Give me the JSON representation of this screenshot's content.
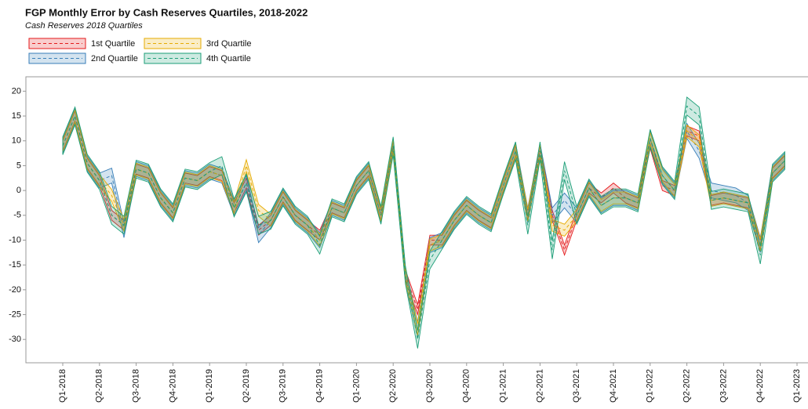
{
  "chart_data": {
    "type": "line",
    "title": "FGP Monthly Error by Cash Reserves Quartiles, 2018-2022",
    "subtitle": "Cash Reserves 2018 Quartiles",
    "categories": [
      "Q1-2018",
      null,
      null,
      "Q2-2018",
      null,
      null,
      "Q3-2018",
      null,
      null,
      "Q4-2018",
      null,
      null,
      "Q1-2019",
      null,
      null,
      "Q2-2019",
      null,
      null,
      "Q3-2019",
      null,
      null,
      "Q4-2019",
      null,
      null,
      "Q1-2020",
      null,
      null,
      "Q2-2020",
      null,
      null,
      "Q3-2020",
      null,
      null,
      "Q4-2020",
      null,
      null,
      "Q1-2021",
      null,
      null,
      "Q2-2021",
      null,
      null,
      "Q3-2021",
      null,
      null,
      "Q4-2021",
      null,
      null,
      "Q1-2022",
      null,
      null,
      "Q2-2022",
      null,
      null,
      "Q3-2022",
      null,
      null,
      "Q4-2022",
      null,
      null,
      "Q1-2023"
    ],
    "ylim": [
      -34.7,
      22.9
    ],
    "yticks": [
      -30,
      -25,
      -20,
      -15,
      -10,
      -5,
      0,
      5,
      10,
      15,
      20
    ],
    "series": [
      {
        "name": "1st Quartile",
        "color": "#e41a1c",
        "error": 1.0,
        "values": [
          9,
          15,
          5.5,
          2,
          -5,
          -7,
          4.3,
          3.5,
          -1.5,
          -4.5,
          2.5,
          2,
          3.8,
          3,
          -3.5,
          1.5,
          -8,
          -6,
          -1.3,
          -5,
          -7,
          -9,
          -3.5,
          -4.5,
          1,
          4,
          -5,
          9,
          -17,
          -24,
          -10,
          -10,
          -6,
          -3,
          -5,
          -6.5,
          1,
          8,
          -5,
          8,
          -5,
          -12,
          -5,
          0.5,
          -1.5,
          0.5,
          -1.5,
          -2.5,
          9.5,
          1,
          0,
          12,
          11,
          -2,
          -1.5,
          -2,
          -2.5,
          -11,
          3.5,
          6,
          null
        ]
      },
      {
        "name": "2nd Quartile",
        "color": "#377eb8",
        "error": 1.5,
        "values": [
          9,
          15,
          5.5,
          2,
          3,
          -8,
          4.3,
          3.5,
          -1.5,
          -4.5,
          2.5,
          2,
          3.8,
          3,
          -3.5,
          1.5,
          -9,
          -6,
          -1.3,
          -5,
          -7,
          -10,
          -3.5,
          -4.5,
          1,
          4,
          -5,
          9,
          -17,
          -28,
          -11,
          -10,
          -6,
          -3,
          -5,
          -6.5,
          1,
          8,
          -5,
          8,
          -5,
          -2,
          -5,
          0.5,
          -3,
          -1.5,
          -1.5,
          -2.5,
          10.5,
          3,
          0,
          12,
          8,
          0,
          -0.5,
          -1,
          -2.5,
          -11,
          3.5,
          6,
          null
        ]
      },
      {
        "name": "3rd Quartile",
        "color": "#e6ab02",
        "error": 1.2,
        "values": [
          9,
          15,
          5.5,
          2,
          -1,
          -7,
          4.3,
          3.5,
          -1.5,
          -4.5,
          2.5,
          2,
          3.8,
          3,
          -3.5,
          5,
          -4,
          -6,
          -1.3,
          -5,
          -7,
          -10,
          -3.5,
          -4.5,
          1,
          4,
          -5,
          9,
          -17,
          -28,
          -11,
          -10,
          -6,
          -3,
          -5,
          -6.5,
          1,
          8,
          -5,
          8,
          -7,
          -8,
          -5,
          0.5,
          -3,
          -1.5,
          -1.5,
          -2.5,
          10.5,
          3,
          0,
          12,
          10,
          -2,
          -1.5,
          -2,
          -2.5,
          -11,
          3.5,
          6,
          null
        ]
      },
      {
        "name": "4th Quartile",
        "color": "#1b9e77",
        "error": 1.8,
        "values": [
          9,
          15,
          5.5,
          2,
          -5,
          -7,
          4.3,
          3.5,
          -1.5,
          -4.5,
          2.5,
          2,
          3.8,
          5,
          -3.5,
          1.5,
          -7,
          -6,
          -1.3,
          -5,
          -7,
          -11,
          -3.5,
          -4.5,
          1,
          4,
          -5,
          9,
          -17,
          -30,
          -14,
          -10,
          -6,
          -3,
          -5,
          -6.5,
          1,
          8,
          -7,
          8,
          -12,
          4,
          -5,
          0.5,
          -3,
          -1.5,
          -1.5,
          -2.5,
          10.5,
          3,
          0,
          17,
          15,
          -2,
          -1.5,
          -2,
          -2.5,
          -13,
          3.5,
          6,
          null
        ]
      }
    ]
  }
}
